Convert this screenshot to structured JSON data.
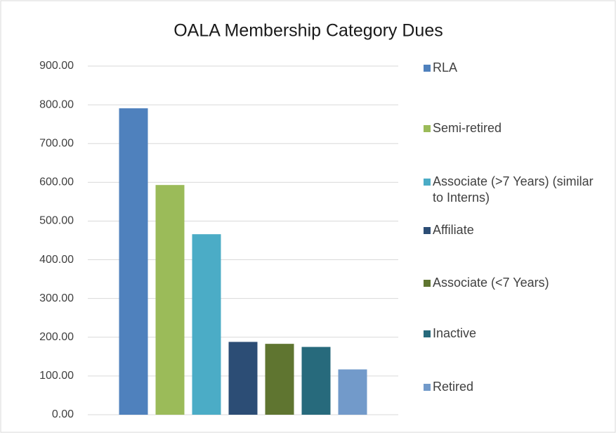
{
  "chart_data": {
    "type": "bar",
    "title": "OALA Membership Category Dues",
    "series": [
      {
        "name": "RLA",
        "color": "#4f81bd",
        "values": [
          791
        ]
      },
      {
        "name": "Semi-retired",
        "color": "#9bbb59",
        "values": [
          593
        ]
      },
      {
        "name": "Associate (>7 Years) (similar to Interns)",
        "color": "#4bacc6",
        "values": [
          466
        ]
      },
      {
        "name": "Affiliate",
        "color": "#2c4d75",
        "values": [
          188
        ]
      },
      {
        "name": "Associate (<7 Years)",
        "color": "#5f7530",
        "values": [
          183
        ]
      },
      {
        "name": "Inactive",
        "color": "#276a7c",
        "values": [
          175
        ]
      },
      {
        "name": "Retired",
        "color": "#729aca",
        "values": [
          117
        ]
      }
    ],
    "ylim": [
      0,
      900
    ],
    "yticks": [
      {
        "value": 0,
        "label": "0.00"
      },
      {
        "value": 100,
        "label": "100.00"
      },
      {
        "value": 200,
        "label": "200.00"
      },
      {
        "value": 300,
        "label": "300.00"
      },
      {
        "value": 400,
        "label": "400.00"
      },
      {
        "value": 500,
        "label": "500.00"
      },
      {
        "value": 600,
        "label": "600.00"
      },
      {
        "value": 700,
        "label": "700.00"
      },
      {
        "value": 800,
        "label": "800.00"
      },
      {
        "value": 900,
        "label": "900.00"
      }
    ],
    "grid": true,
    "legend": "right"
  }
}
